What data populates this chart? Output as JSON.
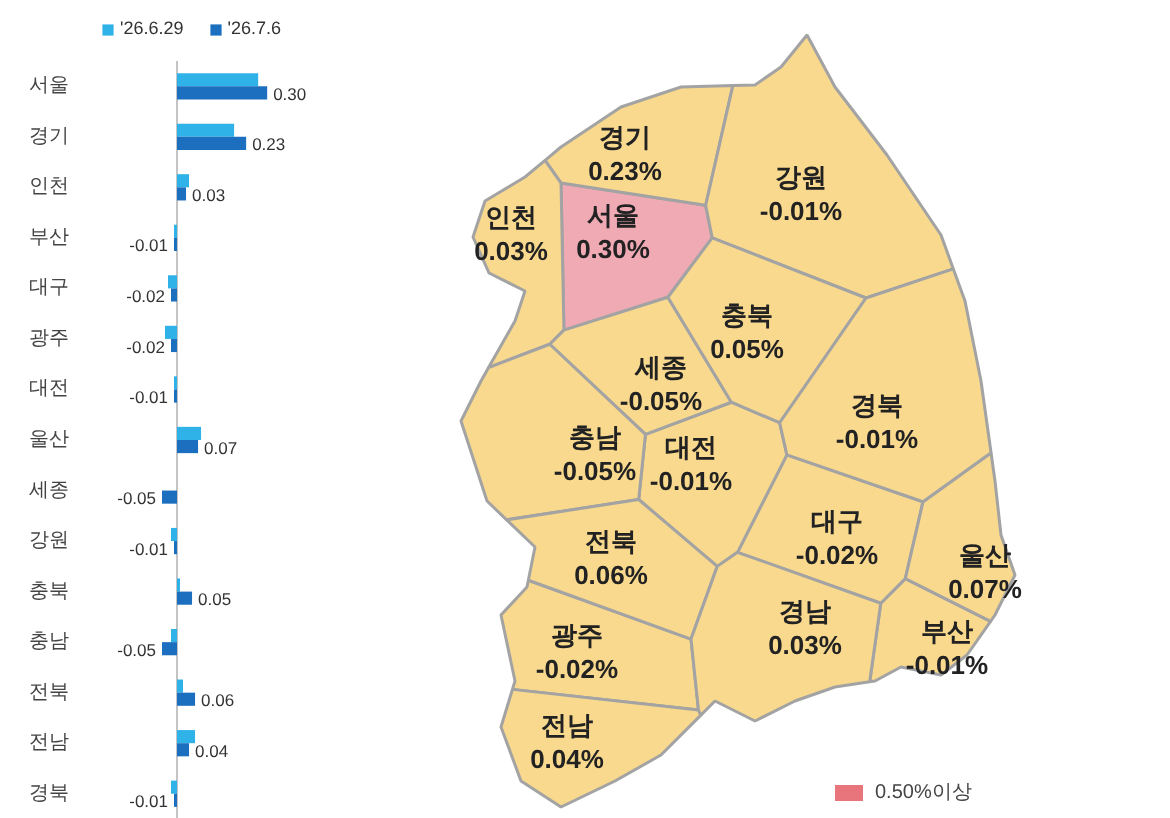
{
  "chart_data": [
    {
      "type": "bar",
      "orientation": "horizontal",
      "legend": "top",
      "tick_labels": "y",
      "categories": [
        "서울",
        "경기",
        "인천",
        "부산",
        "대구",
        "광주",
        "대전",
        "울산",
        "세종",
        "강원",
        "충북",
        "충남",
        "전북",
        "전남",
        "경북"
      ],
      "series": [
        {
          "name": "'26.6.29",
          "color": "#2fb2e8",
          "values": [
            0.27,
            0.19,
            0.04,
            -0.01,
            -0.03,
            -0.04,
            -0.01,
            0.08,
            0,
            -0.02,
            0.01,
            -0.02,
            0.02,
            0.06,
            -0.02
          ]
        },
        {
          "name": "'26.7.6",
          "color": "#1c6fbe",
          "values": [
            0.3,
            0.23,
            0.03,
            -0.01,
            -0.02,
            -0.02,
            -0.01,
            0.07,
            -0.05,
            -0.01,
            0.05,
            -0.05,
            0.06,
            0.04,
            -0.01
          ],
          "value_labels": [
            "0.30",
            "0.23",
            "0.03",
            "-0.01",
            "-0.02",
            "-0.02",
            "-0.01",
            "0.07",
            "-0.05",
            "-0.01",
            "0.05",
            "-0.05",
            "0.06",
            "0.04",
            "-0.01"
          ]
        }
      ]
    },
    {
      "type": "other",
      "categories": [
        "서울",
        "경기",
        "인천",
        "부산",
        "대구",
        "광주",
        "대전",
        "울산",
        "세종",
        "강원",
        "충북",
        "충남",
        "전북",
        "전남",
        "경북",
        "경남"
      ],
      "values": [
        0.3,
        0.23,
        0.03,
        -0.01,
        -0.02,
        -0.02,
        -0.01,
        0.07,
        -0.05,
        -0.01,
        0.05,
        -0.05,
        0.06,
        0.04,
        -0.01,
        0.03
      ],
      "value_labels": [
        "0.30%",
        "0.23%",
        "0.03%",
        "-0.01%",
        "-0.02%",
        "-0.02%",
        "-0.01%",
        "0.07%",
        "-0.05%",
        "-0.01%",
        "0.05%",
        "-0.05%",
        "0.06%",
        "0.04%",
        "-0.01%",
        "0.03%"
      ],
      "colors": [
        "#f0aab4",
        "#f8d98e",
        "#f8d98e",
        "#f8d98e",
        "#f8d98e",
        "#f8d98e",
        "#f8d98e",
        "#f8d98e",
        "#f8d98e",
        "#f8d98e",
        "#f8d98e",
        "#f8d98e",
        "#f8d98e",
        "#f8d98e",
        "#f8d98e",
        "#f8d98e"
      ],
      "annotations": [
        "0.50%이상"
      ]
    }
  ]
}
